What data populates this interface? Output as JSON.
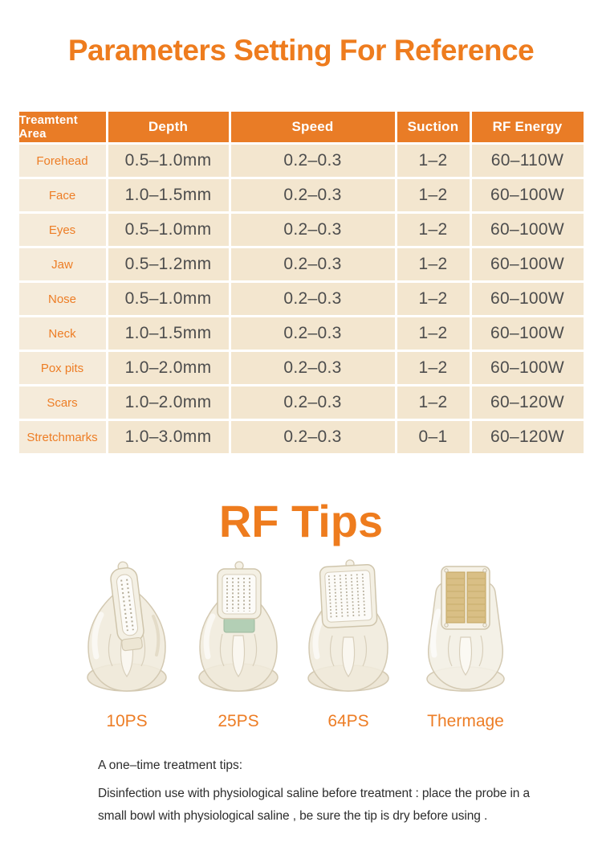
{
  "page": {
    "title": "Parameters Setting For Reference",
    "section_title": "RF Tips"
  },
  "colors": {
    "accent_orange": "#EE7C1E",
    "table_header_bg": "#E97C26",
    "table_row_bg": "#F3E6CF",
    "table_area_col_bg": "#F5EBDA",
    "cell_text": "#4D4D4D",
    "notes_text": "#2D2D2D",
    "thermage_gold": "#D9BF85"
  },
  "table": {
    "columns": [
      "Treamtent Area",
      "Depth",
      "Speed",
      "Suction",
      "RF Energy"
    ],
    "rows": [
      {
        "area": "Forehead",
        "depth": "0.5–1.0mm",
        "speed": "0.2–0.3",
        "suction": "1–2",
        "rf_energy": "60–110W"
      },
      {
        "area": "Face",
        "depth": "1.0–1.5mm",
        "speed": "0.2–0.3",
        "suction": "1–2",
        "rf_energy": "60–100W"
      },
      {
        "area": "Eyes",
        "depth": "0.5–1.0mm",
        "speed": "0.2–0.3",
        "suction": "1–2",
        "rf_energy": "60–100W"
      },
      {
        "area": "Jaw",
        "depth": "0.5–1.2mm",
        "speed": "0.2–0.3",
        "suction": "1–2",
        "rf_energy": "60–100W"
      },
      {
        "area": "Nose",
        "depth": "0.5–1.0mm",
        "speed": "0.2–0.3",
        "suction": "1–2",
        "rf_energy": "60–100W"
      },
      {
        "area": "Neck",
        "depth": "1.0–1.5mm",
        "speed": "0.2–0.3",
        "suction": "1–2",
        "rf_energy": "60–100W"
      },
      {
        "area": "Pox pits",
        "depth": "1.0–2.0mm",
        "speed": "0.2–0.3",
        "suction": "1–2",
        "rf_energy": "60–100W"
      },
      {
        "area": "Scars",
        "depth": "1.0–2.0mm",
        "speed": "0.2–0.3",
        "suction": "1–2",
        "rf_energy": "60–120W"
      },
      {
        "area": "Stretchmarks",
        "depth": "1.0–3.0mm",
        "speed": "0.2–0.3",
        "suction": "0–1",
        "rf_energy": "60–120W"
      }
    ]
  },
  "rf_tips": {
    "items": [
      {
        "label": "10PS"
      },
      {
        "label": "25PS"
      },
      {
        "label": "64PS"
      },
      {
        "label": "Thermage"
      }
    ]
  },
  "notes": {
    "heading": "A one–time treatment tips:",
    "body": "Disinfection use with physiological saline before treatment : place the probe in a small bowl with physiological saline , be sure the tip is dry before using ."
  }
}
